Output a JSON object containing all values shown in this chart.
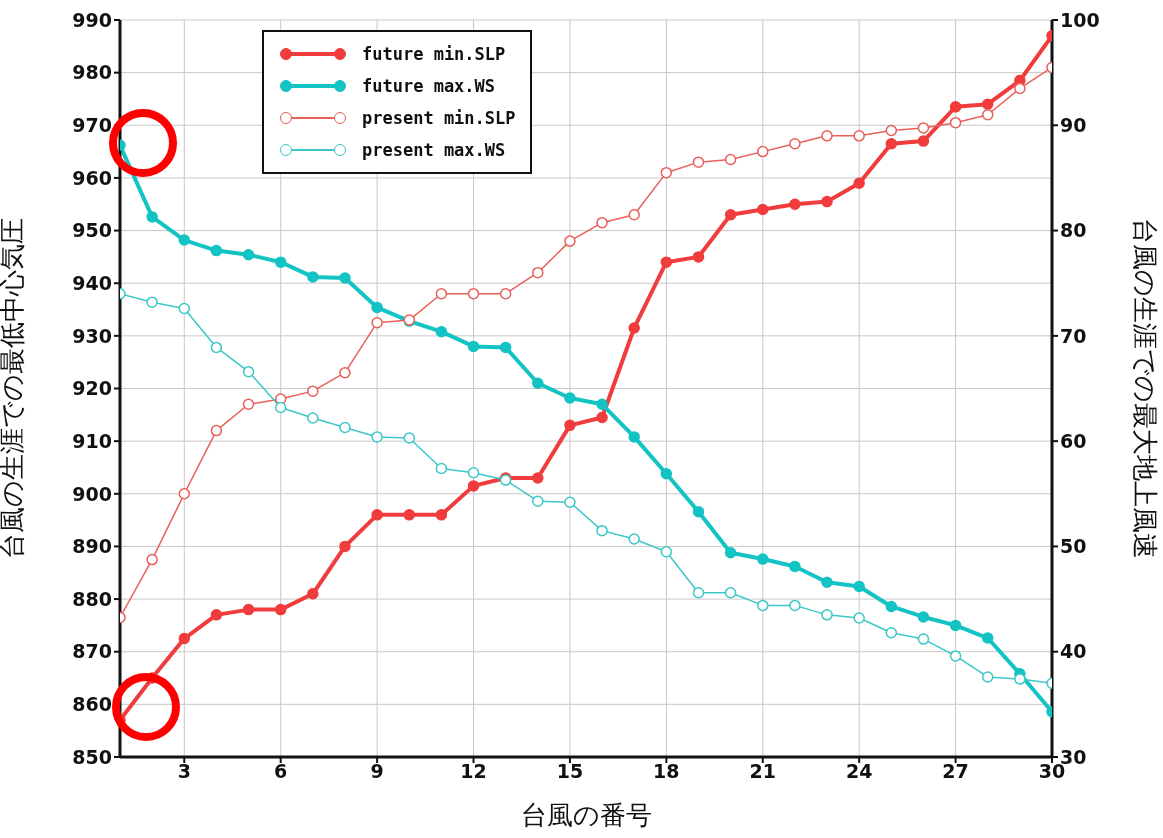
{
  "chart_data": {
    "type": "line",
    "xlabel": "台風の番号",
    "ylabel": "台風の生涯での最低中心気圧",
    "y2label": "台風の生涯での最大地上風速",
    "x": [
      1,
      2,
      3,
      4,
      5,
      6,
      7,
      8,
      9,
      10,
      11,
      12,
      13,
      14,
      15,
      16,
      17,
      18,
      19,
      20,
      21,
      22,
      23,
      24,
      25,
      26,
      27,
      28,
      29,
      30
    ],
    "series": [
      {
        "name": "future min.SLP",
        "color": "#f03c3c",
        "values": [
          857,
          865,
          872.5,
          877,
          878,
          878,
          881,
          890,
          896,
          896,
          896,
          901.5,
          903,
          903,
          913,
          914.5,
          931.5,
          944,
          945,
          953,
          954,
          955,
          955.5,
          959,
          966.5,
          967,
          973.5,
          974,
          978.5,
          987
        ]
      },
      {
        "name": "future max.WS",
        "color": "#14c3c3",
        "axis": "y2",
        "values": [
          88.1,
          81.3,
          79.1,
          78.1,
          77.7,
          77.0,
          75.6,
          75.5,
          72.7,
          71.4,
          70.4,
          69.0,
          68.9,
          65.5,
          64.1,
          63.5,
          60.4,
          56.9,
          53.3,
          49.4,
          48.8,
          48.1,
          46.6,
          46.2,
          44.3,
          43.3,
          42.5,
          41.3,
          37.9,
          34.3
        ]
      },
      {
        "name": "present min.SLP",
        "color": "#e8605a",
        "values": [
          876.5,
          887.5,
          900,
          912,
          917,
          918,
          919.5,
          923,
          932.5,
          933,
          938,
          938,
          938,
          942,
          948,
          951.5,
          953,
          961,
          963,
          963.5,
          965,
          966.5,
          968,
          968,
          969,
          969.5,
          970.5,
          972,
          977,
          981
        ]
      },
      {
        "name": "present max.WS",
        "color": "#3cc8c8",
        "axis": "y2",
        "values": [
          74.0,
          73.2,
          72.6,
          68.9,
          66.6,
          63.2,
          62.2,
          61.3,
          60.4,
          60.3,
          57.4,
          57.0,
          56.3,
          54.3,
          54.2,
          51.5,
          50.7,
          49.5,
          45.6,
          45.6,
          44.4,
          44.4,
          43.5,
          43.2,
          41.8,
          41.2,
          39.6,
          37.6,
          37.4,
          37.0
        ]
      }
    ],
    "xlim": [
      1,
      30
    ],
    "xticks": [
      3,
      6,
      9,
      12,
      15,
      18,
      21,
      24,
      27,
      30
    ],
    "ylim": [
      850,
      990
    ],
    "yticks": [
      850,
      860,
      870,
      880,
      890,
      900,
      910,
      920,
      930,
      940,
      950,
      960,
      970,
      980,
      990
    ],
    "y2lim": [
      30,
      100
    ],
    "y2ticks": [
      30,
      40,
      50,
      60,
      70,
      80,
      90,
      100
    ],
    "grid": true,
    "legend": "top left",
    "marker": "circle",
    "line_style": "solid"
  }
}
